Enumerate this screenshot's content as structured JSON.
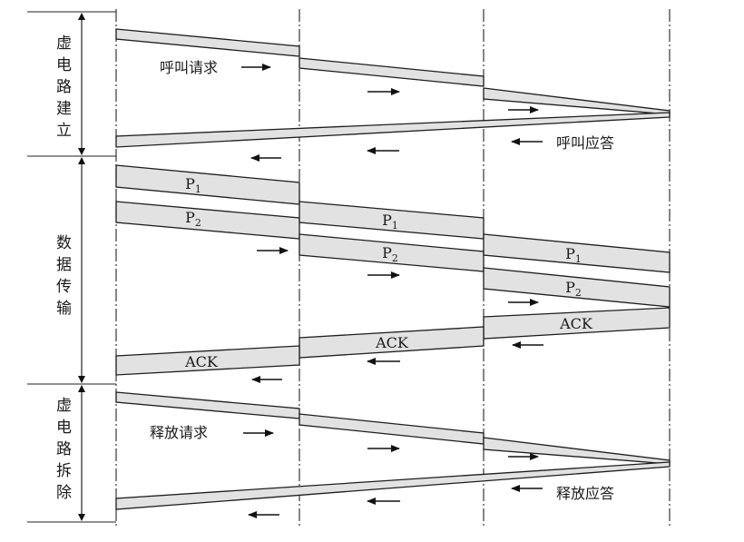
{
  "phases": [
    {
      "label": "虚电路建立"
    },
    {
      "label": "数据传输"
    },
    {
      "label": "虚电路拆除"
    }
  ],
  "setup": {
    "request": "呼叫请求",
    "accept": "呼叫应答"
  },
  "transfer": {
    "packets": [
      {
        "base": "P",
        "sub": "1"
      },
      {
        "base": "P",
        "sub": "2"
      }
    ],
    "ack": "ACK"
  },
  "teardown": {
    "request": "释放请求",
    "accept": "释放应答"
  },
  "colors": {
    "band_fill": "#e2e2e2",
    "line": "#1e1e1e"
  }
}
